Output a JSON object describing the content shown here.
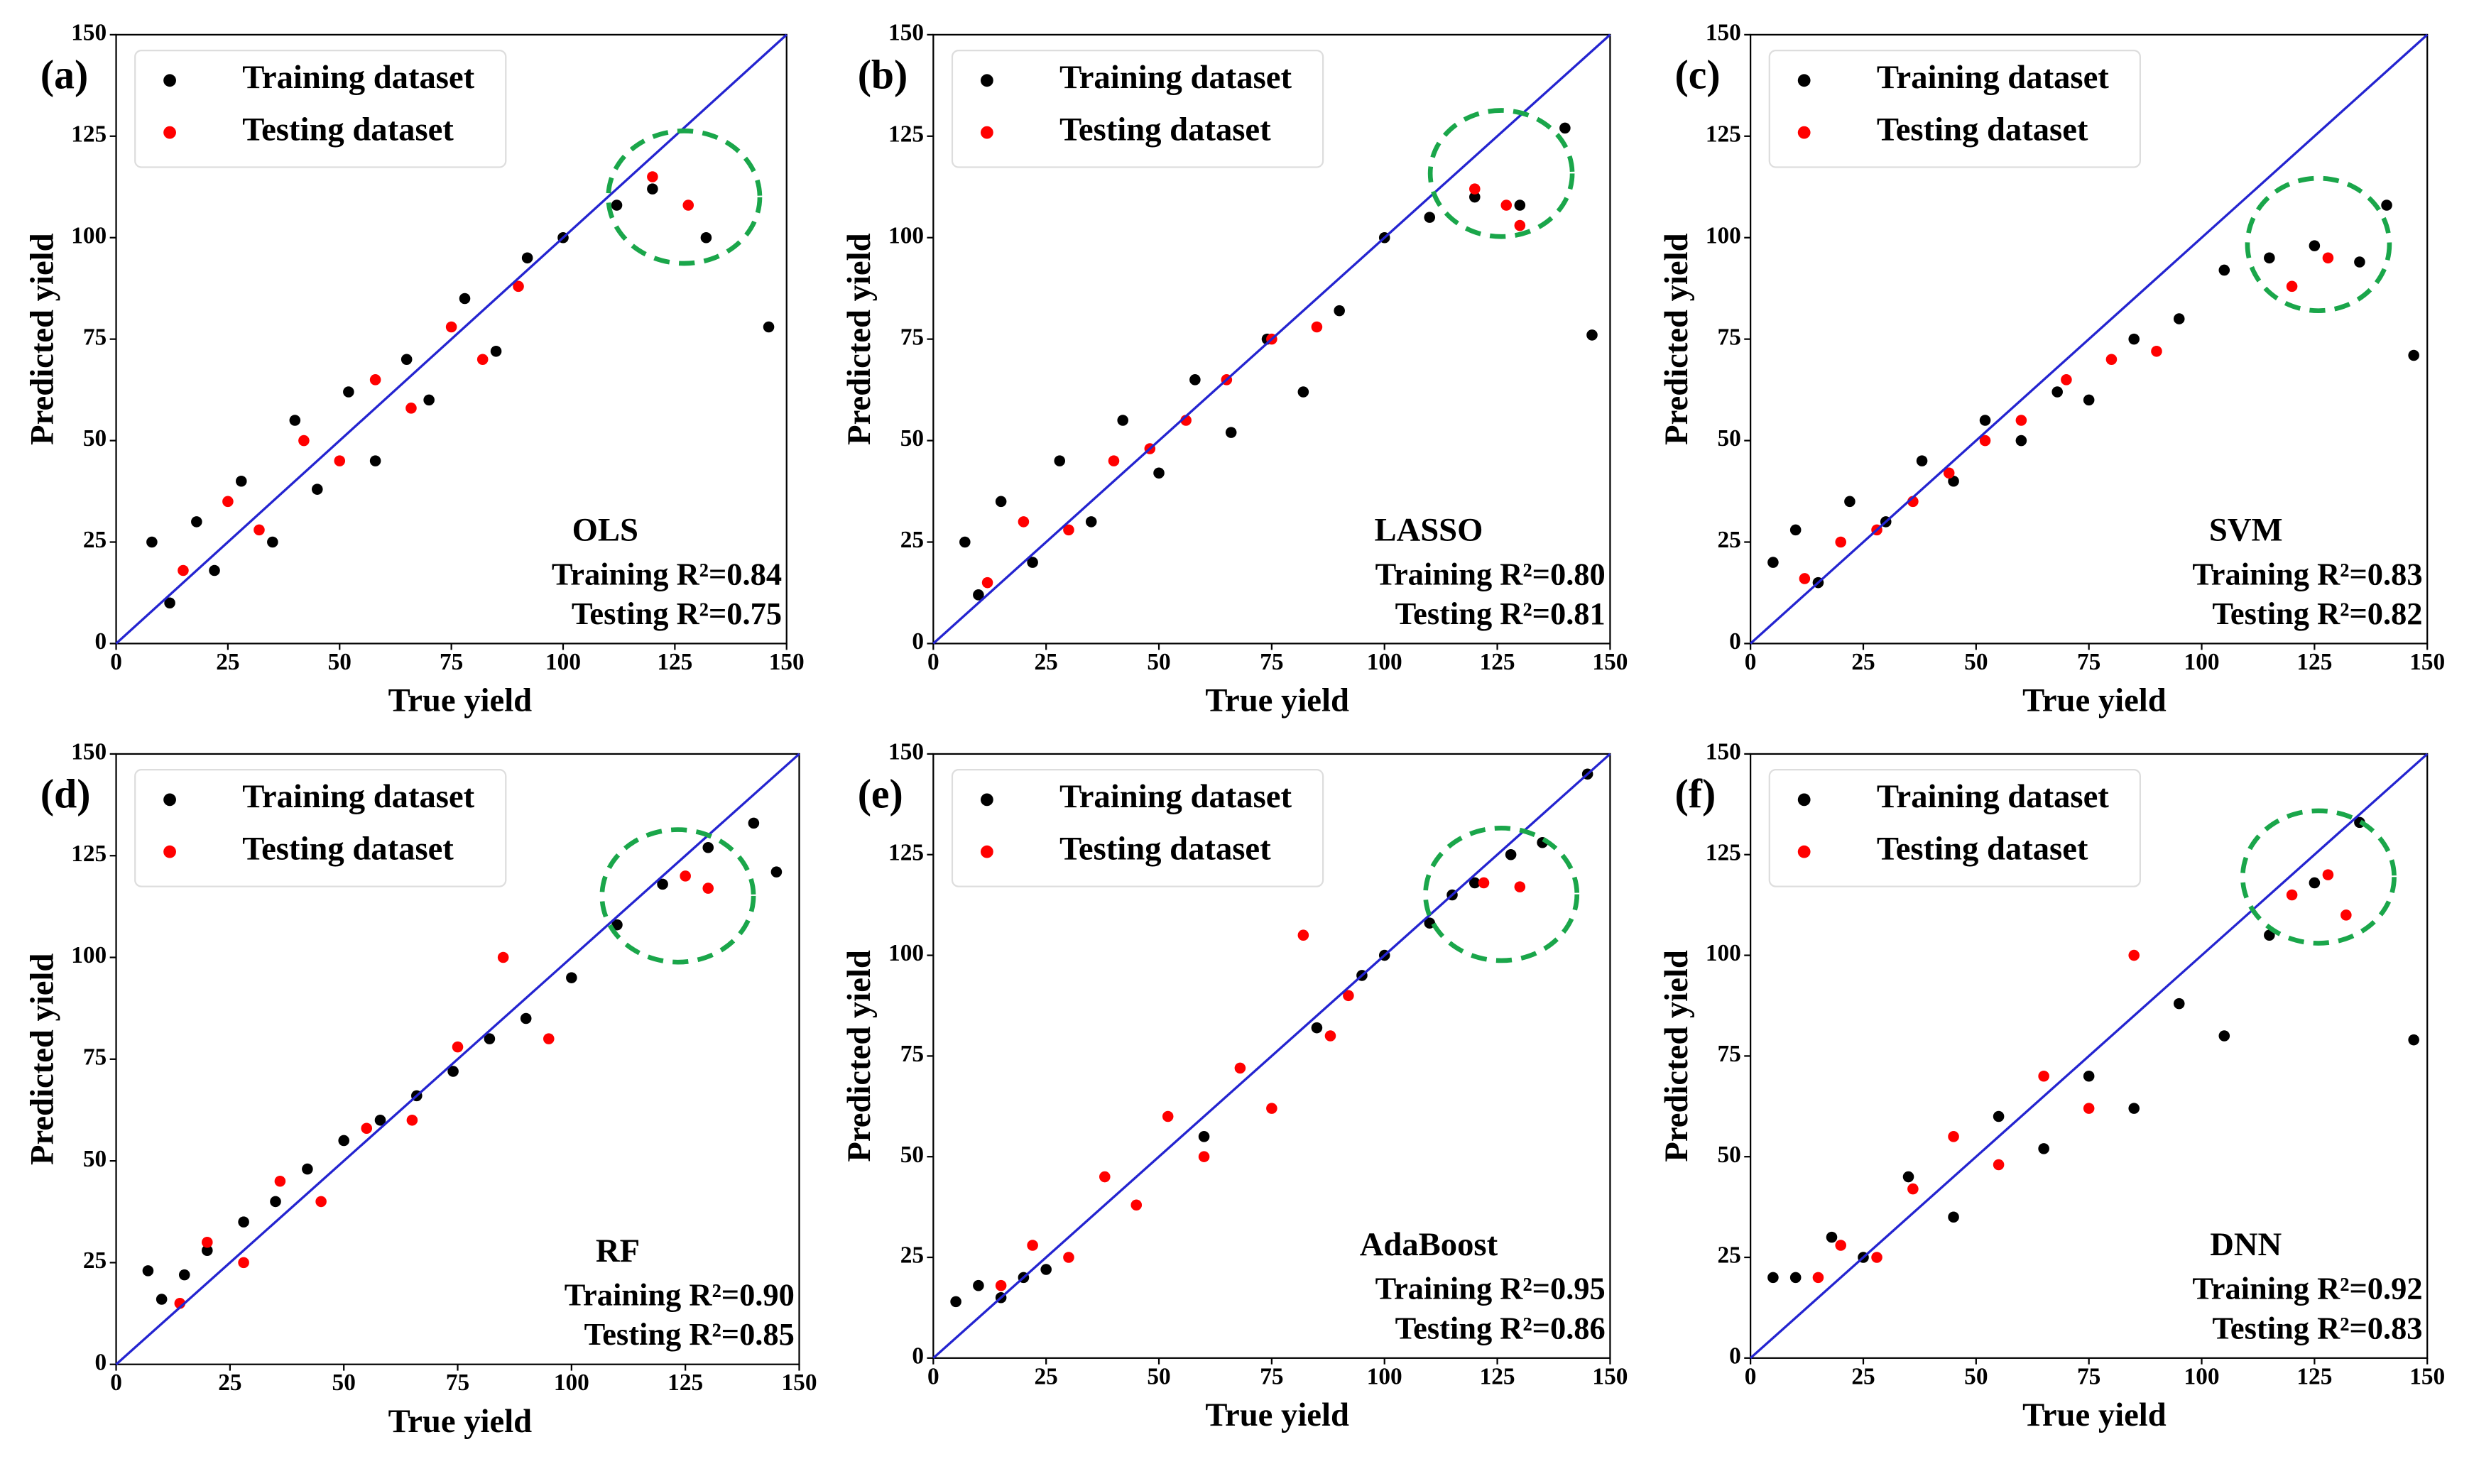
{
  "chart_data": [
    {
      "type": "scatter",
      "panel_label": "(a)",
      "model": "OLS",
      "training_r2": "Training R²=0.84",
      "testing_r2": "Testing R²=0.75",
      "x_label": "True yield",
      "y_label": "Predicted yield",
      "xlim": [
        0,
        150
      ],
      "ylim": [
        0,
        150
      ],
      "xticks": [
        0,
        25,
        50,
        75,
        100,
        125,
        150
      ],
      "yticks": [
        0,
        25,
        50,
        75,
        100,
        125,
        150
      ],
      "identity_line_color": "#2424d0",
      "legend": "upper left",
      "series": [
        {
          "name": "Training dataset",
          "color": "#000000",
          "x": [
            8,
            12,
            18,
            22,
            28,
            35,
            40,
            45,
            52,
            58,
            65,
            70,
            78,
            85,
            92,
            100,
            112,
            120,
            132,
            146
          ],
          "values": [
            25,
            10,
            30,
            18,
            40,
            25,
            55,
            38,
            62,
            45,
            70,
            60,
            85,
            72,
            95,
            100,
            108,
            112,
            100,
            78
          ]
        },
        {
          "name": "Testing dataset",
          "color": "#ff0000",
          "x": [
            15,
            25,
            32,
            42,
            50,
            58,
            66,
            75,
            82,
            90,
            120,
            128
          ],
          "values": [
            18,
            35,
            28,
            50,
            45,
            65,
            58,
            78,
            70,
            88,
            115,
            108
          ]
        }
      ]
    },
    {
      "type": "scatter",
      "panel_label": "(b)",
      "model": "LASSO",
      "training_r2": "Training R²=0.80",
      "testing_r2": "Testing R²=0.81",
      "x_label": "True yield",
      "y_label": "Predicted yield",
      "xlim": [
        0,
        150
      ],
      "ylim": [
        0,
        150
      ],
      "xticks": [
        0,
        25,
        50,
        75,
        100,
        125,
        150
      ],
      "yticks": [
        0,
        25,
        50,
        75,
        100,
        125,
        150
      ],
      "identity_line_color": "#2424d0",
      "legend": "upper left",
      "series": [
        {
          "name": "Training dataset",
          "color": "#000000",
          "x": [
            7,
            10,
            15,
            22,
            28,
            35,
            42,
            50,
            58,
            66,
            74,
            82,
            90,
            100,
            110,
            120,
            130,
            140,
            146
          ],
          "values": [
            25,
            12,
            35,
            20,
            45,
            30,
            55,
            42,
            65,
            52,
            75,
            62,
            82,
            100,
            105,
            110,
            108,
            127,
            76
          ]
        },
        {
          "name": "Testing dataset",
          "color": "#ff0000",
          "x": [
            12,
            20,
            30,
            40,
            48,
            56,
            65,
            75,
            85,
            120,
            127,
            130
          ],
          "values": [
            15,
            30,
            28,
            45,
            48,
            55,
            65,
            75,
            78,
            112,
            108,
            103
          ]
        }
      ]
    },
    {
      "type": "scatter",
      "panel_label": "(c)",
      "model": "SVM",
      "training_r2": "Training R²=0.83",
      "testing_r2": "Testing R²=0.82",
      "x_label": "True yield",
      "y_label": "Predicted yield",
      "xlim": [
        0,
        150
      ],
      "ylim": [
        0,
        150
      ],
      "xticks": [
        0,
        25,
        50,
        75,
        100,
        125,
        150
      ],
      "yticks": [
        0,
        25,
        50,
        75,
        100,
        125,
        150
      ],
      "identity_line_color": "#2424d0",
      "legend": "upper left",
      "series": [
        {
          "name": "Training dataset",
          "color": "#000000",
          "x": [
            5,
            10,
            15,
            22,
            30,
            38,
            45,
            52,
            60,
            68,
            75,
            85,
            95,
            105,
            115,
            125,
            135,
            141,
            147
          ],
          "values": [
            20,
            28,
            15,
            35,
            30,
            45,
            40,
            55,
            50,
            62,
            60,
            75,
            80,
            92,
            95,
            98,
            94,
            108,
            71
          ]
        },
        {
          "name": "Testing dataset",
          "color": "#ff0000",
          "x": [
            12,
            20,
            28,
            36,
            44,
            52,
            60,
            70,
            80,
            90,
            120,
            128
          ],
          "values": [
            16,
            25,
            28,
            35,
            42,
            50,
            55,
            65,
            70,
            72,
            88,
            95
          ]
        }
      ]
    },
    {
      "type": "scatter",
      "panel_label": "(d)",
      "model": "RF",
      "training_r2": "Training R²=0.90",
      "testing_r2": "Testing R²=0.85",
      "x_label": "True yield",
      "y_label": "Predicted yield",
      "xlim": [
        0,
        150
      ],
      "ylim": [
        0,
        150
      ],
      "xticks": [
        0,
        25,
        50,
        75,
        100,
        125,
        150
      ],
      "yticks": [
        0,
        25,
        50,
        75,
        100,
        125,
        150
      ],
      "identity_line_color": "#2424d0",
      "legend": "upper left",
      "series": [
        {
          "name": "Training dataset",
          "color": "#000000",
          "x": [
            7,
            10,
            15,
            20,
            28,
            35,
            42,
            50,
            58,
            66,
            74,
            82,
            90,
            100,
            110,
            120,
            130,
            140,
            145
          ],
          "values": [
            23,
            16,
            22,
            28,
            35,
            40,
            48,
            55,
            60,
            66,
            72,
            80,
            85,
            95,
            108,
            118,
            127,
            133,
            121
          ]
        },
        {
          "name": "Testing dataset",
          "color": "#ff0000",
          "x": [
            14,
            20,
            28,
            36,
            45,
            55,
            65,
            75,
            85,
            95,
            125,
            130
          ],
          "values": [
            15,
            30,
            25,
            45,
            40,
            58,
            60,
            78,
            100,
            80,
            120,
            117
          ]
        }
      ]
    },
    {
      "type": "scatter",
      "panel_label": "(e)",
      "model": "AdaBoost",
      "training_r2": "Training R²=0.95",
      "testing_r2": "Testing R²=0.86",
      "x_label": "True yield",
      "y_label": "Predicted yield",
      "xlim": [
        0,
        150
      ],
      "ylim": [
        0,
        150
      ],
      "xticks": [
        0,
        25,
        50,
        75,
        100,
        125,
        150
      ],
      "yticks": [
        0,
        25,
        50,
        75,
        100,
        125,
        150
      ],
      "identity_line_color": "#2424d0",
      "legend": "upper left",
      "series": [
        {
          "name": "Training dataset",
          "color": "#000000",
          "x": [
            5,
            10,
            15,
            20,
            25,
            60,
            85,
            95,
            100,
            110,
            115,
            120,
            128,
            135,
            145
          ],
          "values": [
            14,
            18,
            15,
            20,
            22,
            55,
            82,
            95,
            100,
            108,
            115,
            118,
            125,
            128,
            145
          ]
        },
        {
          "name": "Testing dataset",
          "color": "#ff0000",
          "x": [
            15,
            22,
            30,
            38,
            45,
            52,
            60,
            68,
            75,
            82,
            88,
            92,
            122,
            130
          ],
          "values": [
            18,
            28,
            25,
            45,
            38,
            60,
            50,
            72,
            62,
            105,
            80,
            90,
            118,
            117
          ]
        }
      ]
    },
    {
      "type": "scatter",
      "panel_label": "(f)",
      "model": "DNN",
      "training_r2": "Training R²=0.92",
      "testing_r2": "Testing R²=0.83",
      "x_label": "True yield",
      "y_label": "Predicted yield",
      "xlim": [
        0,
        150
      ],
      "ylim": [
        0,
        150
      ],
      "xticks": [
        0,
        25,
        50,
        75,
        100,
        125,
        150
      ],
      "yticks": [
        0,
        25,
        50,
        75,
        100,
        125,
        150
      ],
      "identity_line_color": "#2424d0",
      "legend": "upper left",
      "series": [
        {
          "name": "Training dataset",
          "color": "#000000",
          "x": [
            5,
            10,
            18,
            25,
            35,
            45,
            55,
            65,
            75,
            85,
            95,
            105,
            115,
            125,
            135,
            147
          ],
          "values": [
            20,
            20,
            30,
            25,
            45,
            35,
            60,
            52,
            70,
            62,
            88,
            80,
            105,
            118,
            133,
            79
          ]
        },
        {
          "name": "Testing dataset",
          "color": "#ff0000",
          "x": [
            15,
            20,
            28,
            36,
            45,
            55,
            65,
            75,
            85,
            120,
            128,
            132
          ],
          "values": [
            20,
            28,
            25,
            42,
            55,
            48,
            70,
            62,
            100,
            115,
            120,
            110
          ]
        }
      ]
    }
  ]
}
